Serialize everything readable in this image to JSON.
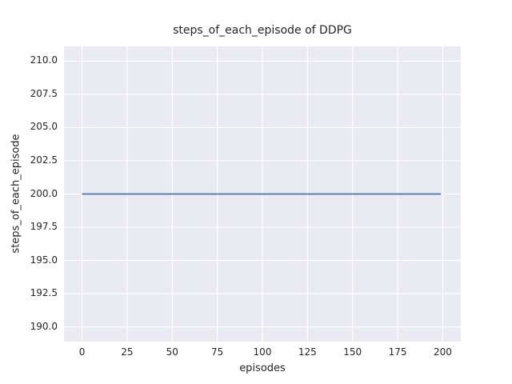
{
  "chart_data": {
    "type": "line",
    "title": "steps_of_each_episode of DDPG",
    "xlabel": "episodes",
    "ylabel": "steps_of_each_episode",
    "xlim": [
      -10,
      210
    ],
    "ylim": [
      188.9,
      211.1
    ],
    "xticks": [
      0,
      25,
      50,
      75,
      100,
      125,
      150,
      175,
      200
    ],
    "xtick_labels": [
      "0",
      "25",
      "50",
      "75",
      "100",
      "125",
      "150",
      "175",
      "200"
    ],
    "yticks": [
      190.0,
      192.5,
      195.0,
      197.5,
      200.0,
      202.5,
      205.0,
      207.5,
      210.0
    ],
    "ytick_labels": [
      "190.0",
      "192.5",
      "195.0",
      "197.5",
      "200.0",
      "202.5",
      "205.0",
      "207.5",
      "210.0"
    ],
    "grid": true,
    "grid_color": "#ffffff",
    "plot_background": "#eaeaf2",
    "legend_position": "none",
    "series": [
      {
        "name": "steps_of_each_episode",
        "color": "#4c72b0",
        "line_width": 1.8,
        "x": [
          0,
          199
        ],
        "y": [
          200,
          200
        ]
      }
    ]
  }
}
